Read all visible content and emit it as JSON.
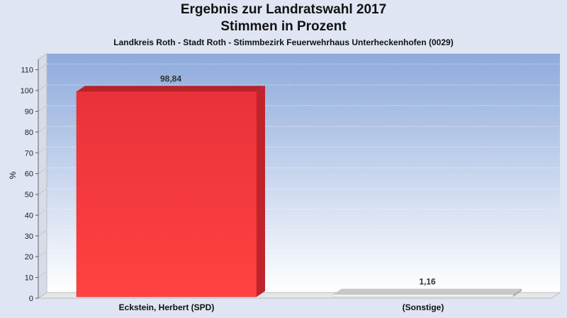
{
  "chart_data": {
    "type": "bar",
    "title": "Ergebnis zur Landratswahl 2017",
    "title_line2": "Stimmen in Prozent",
    "subtitle": "Landkreis Roth - Stadt Roth - Stimmbezirk Feuerwehrhaus Unterheckenhofen (0029)",
    "xlabel": "",
    "ylabel": "%",
    "categories": [
      "Eckstein, Herbert (SPD)",
      "(Sonstige)"
    ],
    "values": [
      98.84,
      1.16
    ],
    "value_labels": [
      "98,84",
      "1,16"
    ],
    "bar_colors": [
      "#ff3b3b",
      "#e8e8e8"
    ],
    "ylim": [
      0,
      115
    ],
    "yticks": [
      0,
      10,
      20,
      30,
      40,
      50,
      60,
      70,
      80,
      90,
      100,
      110
    ],
    "grid": true,
    "background_gradient": [
      "#8eaadc",
      "#ffffff"
    ]
  }
}
